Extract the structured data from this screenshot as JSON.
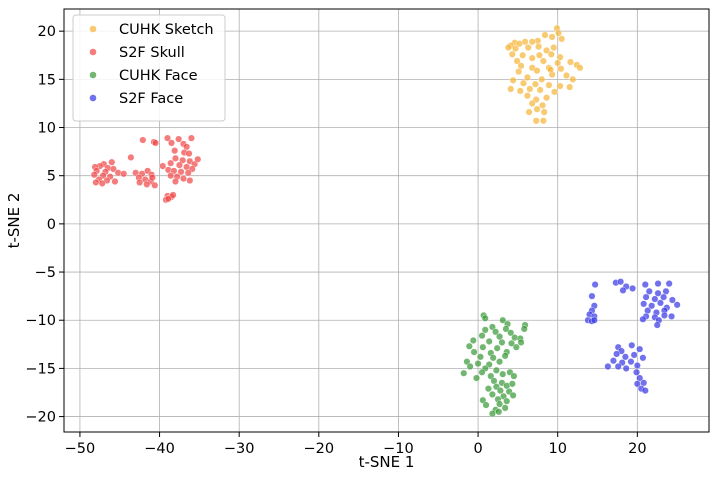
{
  "chart_data": {
    "type": "scatter",
    "title": "",
    "xlabel": "t-SNE 1",
    "ylabel": "t-SNE 2",
    "xlim": [
      -52,
      29
    ],
    "ylim": [
      -21.6,
      22.3
    ],
    "xticks": [
      -50,
      -40,
      -30,
      -20,
      -10,
      0,
      10,
      20
    ],
    "yticks": [
      -20,
      -15,
      -10,
      -5,
      0,
      5,
      10,
      15,
      20
    ],
    "xtick_labels": [
      "−50",
      "−40",
      "−30",
      "−20",
      "−10",
      "0",
      "10",
      "20"
    ],
    "ytick_labels": [
      "−20",
      "−15",
      "−10",
      "−5",
      "0",
      "5",
      "10",
      "15",
      "20"
    ],
    "grid": true,
    "legend_position": "top-left",
    "series": [
      {
        "name": "CUHK Sketch",
        "color": "#f5b53a",
        "points": [
          [
            9.9,
            20.3
          ],
          [
            10.1,
            19.8
          ],
          [
            9.3,
            19.4
          ],
          [
            8.4,
            19.6
          ],
          [
            10.5,
            19.2
          ],
          [
            7.5,
            19.0
          ],
          [
            6.8,
            18.9
          ],
          [
            5.9,
            18.9
          ],
          [
            4.6,
            18.8
          ],
          [
            4.1,
            18.5
          ],
          [
            3.8,
            18.3
          ],
          [
            4.7,
            18.2
          ],
          [
            6.3,
            18.3
          ],
          [
            7.6,
            18.4
          ],
          [
            9.5,
            18.3
          ],
          [
            8.6,
            18.0
          ],
          [
            4.3,
            17.6
          ],
          [
            5.6,
            17.5
          ],
          [
            7.7,
            17.5
          ],
          [
            9.2,
            17.6
          ],
          [
            10.3,
            17.3
          ],
          [
            6.8,
            17.2
          ],
          [
            4.9,
            16.9
          ],
          [
            8.2,
            16.9
          ],
          [
            10.0,
            16.7
          ],
          [
            11.6,
            16.8
          ],
          [
            12.4,
            16.5
          ],
          [
            12.8,
            16.2
          ],
          [
            5.4,
            16.4
          ],
          [
            6.8,
            16.2
          ],
          [
            8.9,
            16.2
          ],
          [
            10.4,
            16.1
          ],
          [
            5.1,
            15.8
          ],
          [
            7.4,
            15.9
          ],
          [
            9.3,
            15.5
          ],
          [
            11.1,
            15.4
          ],
          [
            6.2,
            15.2
          ],
          [
            8.0,
            15.0
          ],
          [
            11.9,
            15.0
          ],
          [
            4.4,
            14.9
          ],
          [
            5.7,
            14.6
          ],
          [
            7.2,
            14.5
          ],
          [
            8.9,
            14.4
          ],
          [
            10.3,
            14.3
          ],
          [
            11.5,
            14.2
          ],
          [
            4.1,
            14.0
          ],
          [
            5.3,
            13.8
          ],
          [
            7.8,
            13.9
          ],
          [
            9.6,
            13.7
          ],
          [
            6.2,
            13.3
          ],
          [
            7.3,
            12.9
          ],
          [
            8.6,
            13.1
          ],
          [
            6.8,
            12.5
          ],
          [
            8.1,
            12.3
          ],
          [
            7.4,
            11.9
          ],
          [
            6.4,
            11.6
          ],
          [
            8.3,
            11.6
          ],
          [
            7.3,
            10.7
          ],
          [
            8.2,
            10.7
          ],
          [
            5.2,
            18.7
          ],
          [
            9.1,
            16.0
          ],
          [
            6.5,
            14.0
          ]
        ]
      },
      {
        "name": "S2F Skull",
        "color": "#f04a4a",
        "points": [
          [
            -39.0,
            8.9
          ],
          [
            -37.6,
            8.8
          ],
          [
            -36.0,
            8.9
          ],
          [
            -38.5,
            8.4
          ],
          [
            -37.0,
            8.3
          ],
          [
            -36.6,
            8.0
          ],
          [
            -42.1,
            8.7
          ],
          [
            -40.7,
            8.5
          ],
          [
            -40.5,
            8.4
          ],
          [
            -38.1,
            7.6
          ],
          [
            -36.9,
            7.4
          ],
          [
            -36.3,
            7.3
          ],
          [
            -43.6,
            6.9
          ],
          [
            -46.0,
            6.4
          ],
          [
            -47.0,
            6.2
          ],
          [
            -47.5,
            6.0
          ],
          [
            -48.1,
            5.9
          ],
          [
            -46.5,
            5.8
          ],
          [
            -45.8,
            5.7
          ],
          [
            -47.9,
            5.5
          ],
          [
            -46.8,
            5.4
          ],
          [
            -45.2,
            5.3
          ],
          [
            -44.5,
            5.2
          ],
          [
            -48.2,
            5.1
          ],
          [
            -47.1,
            5.0
          ],
          [
            -46.2,
            4.9
          ],
          [
            -47.6,
            4.6
          ],
          [
            -46.6,
            4.5
          ],
          [
            -45.6,
            4.4
          ],
          [
            -48.0,
            4.3
          ],
          [
            -47.2,
            4.2
          ],
          [
            -43.0,
            5.3
          ],
          [
            -42.2,
            5.2
          ],
          [
            -41.5,
            5.5
          ],
          [
            -41.0,
            5.1
          ],
          [
            -42.6,
            4.8
          ],
          [
            -41.8,
            4.6
          ],
          [
            -41.1,
            4.4
          ],
          [
            -42.5,
            4.3
          ],
          [
            -41.6,
            4.1
          ],
          [
            -40.6,
            4.0
          ],
          [
            -40.9,
            4.8
          ],
          [
            -38.0,
            6.8
          ],
          [
            -37.1,
            6.6
          ],
          [
            -36.2,
            6.5
          ],
          [
            -35.6,
            6.2
          ],
          [
            -38.6,
            6.3
          ],
          [
            -37.5,
            6.1
          ],
          [
            -36.6,
            5.9
          ],
          [
            -35.9,
            5.7
          ],
          [
            -38.9,
            5.6
          ],
          [
            -38.2,
            5.5
          ],
          [
            -37.3,
            5.4
          ],
          [
            -36.4,
            5.3
          ],
          [
            -38.6,
            5.0
          ],
          [
            -37.8,
            4.9
          ],
          [
            -37.0,
            4.7
          ],
          [
            -36.2,
            4.5
          ],
          [
            -38.0,
            4.4
          ],
          [
            -39.0,
            2.9
          ],
          [
            -38.5,
            2.8
          ],
          [
            -39.2,
            2.5
          ],
          [
            -38.9,
            2.6
          ],
          [
            -38.3,
            3.0
          ],
          [
            -35.2,
            6.7
          ],
          [
            -39.6,
            6.0
          ]
        ]
      },
      {
        "name": "CUHK Face",
        "color": "#3a9a3a",
        "points": [
          [
            0.7,
            -9.5
          ],
          [
            0.9,
            -9.8
          ],
          [
            3.1,
            -10.0
          ],
          [
            3.7,
            -10.4
          ],
          [
            5.9,
            -10.5
          ],
          [
            1.8,
            -10.7
          ],
          [
            3.5,
            -10.9
          ],
          [
            5.8,
            -10.9
          ],
          [
            0.9,
            -11.0
          ],
          [
            2.2,
            -11.2
          ],
          [
            4.1,
            -11.3
          ],
          [
            0.5,
            -11.6
          ],
          [
            2.7,
            -11.7
          ],
          [
            4.6,
            -11.8
          ],
          [
            5.3,
            -11.9
          ],
          [
            -0.6,
            -12.1
          ],
          [
            1.4,
            -12.2
          ],
          [
            3.0,
            -12.3
          ],
          [
            4.2,
            -12.4
          ],
          [
            5.4,
            -12.3
          ],
          [
            -1.1,
            -12.7
          ],
          [
            0.6,
            -12.8
          ],
          [
            2.4,
            -12.9
          ],
          [
            4.8,
            -12.8
          ],
          [
            -0.5,
            -13.3
          ],
          [
            1.6,
            -13.4
          ],
          [
            3.6,
            -13.3
          ],
          [
            0.3,
            -13.8
          ],
          [
            1.9,
            -13.9
          ],
          [
            3.4,
            -13.7
          ],
          [
            -1.4,
            -14.3
          ],
          [
            0.0,
            -14.5
          ],
          [
            1.4,
            -14.6
          ],
          [
            2.7,
            -14.3
          ],
          [
            -1.0,
            -14.8
          ],
          [
            0.9,
            -15.0
          ],
          [
            2.3,
            -15.2
          ],
          [
            -1.8,
            -15.5
          ],
          [
            0.5,
            -15.4
          ],
          [
            1.6,
            -15.8
          ],
          [
            3.1,
            -15.6
          ],
          [
            4.0,
            -15.4
          ],
          [
            2.0,
            -16.3
          ],
          [
            3.0,
            -16.5
          ],
          [
            2.3,
            -16.9
          ],
          [
            3.6,
            -16.8
          ],
          [
            4.3,
            -16.6
          ],
          [
            1.3,
            -17.1
          ],
          [
            2.8,
            -17.3
          ],
          [
            3.9,
            -17.4
          ],
          [
            1.8,
            -17.7
          ],
          [
            3.2,
            -17.9
          ],
          [
            4.4,
            -17.8
          ],
          [
            0.6,
            -18.3
          ],
          [
            2.5,
            -18.2
          ],
          [
            3.6,
            -18.4
          ],
          [
            1.0,
            -18.8
          ],
          [
            2.7,
            -18.7
          ],
          [
            2.2,
            -19.3
          ],
          [
            3.4,
            -19.1
          ],
          [
            1.8,
            -19.7
          ],
          [
            2.6,
            -19.5
          ],
          [
            4.5,
            -15.8
          ],
          [
            -0.2,
            -16.0
          ]
        ]
      },
      {
        "name": "S2F Face",
        "color": "#3a3ae8",
        "points": [
          [
            17.3,
            -6.1
          ],
          [
            17.9,
            -6.0
          ],
          [
            18.6,
            -6.5
          ],
          [
            18.2,
            -6.9
          ],
          [
            19.4,
            -6.7
          ],
          [
            21.0,
            -6.3
          ],
          [
            22.6,
            -6.2
          ],
          [
            24.0,
            -6.2
          ],
          [
            21.5,
            -7.0
          ],
          [
            22.6,
            -7.2
          ],
          [
            23.6,
            -7.0
          ],
          [
            21.1,
            -7.6
          ],
          [
            22.2,
            -7.8
          ],
          [
            23.3,
            -7.6
          ],
          [
            24.4,
            -7.9
          ],
          [
            20.8,
            -8.3
          ],
          [
            21.8,
            -8.5
          ],
          [
            22.9,
            -8.2
          ],
          [
            25.0,
            -8.4
          ],
          [
            23.7,
            -8.7
          ],
          [
            21.3,
            -9.0
          ],
          [
            22.4,
            -9.2
          ],
          [
            23.4,
            -9.0
          ],
          [
            21.1,
            -9.6
          ],
          [
            22.2,
            -9.7
          ],
          [
            23.4,
            -9.5
          ],
          [
            24.3,
            -9.6
          ],
          [
            20.7,
            -9.9
          ],
          [
            22.7,
            -10.0
          ],
          [
            22.5,
            -10.5
          ],
          [
            14.7,
            -6.3
          ],
          [
            14.3,
            -7.5
          ],
          [
            14.6,
            -8.5
          ],
          [
            14.3,
            -9.0
          ],
          [
            14.0,
            -9.4
          ],
          [
            14.6,
            -9.6
          ],
          [
            13.8,
            -10.0
          ],
          [
            14.3,
            -10.1
          ],
          [
            14.6,
            -10.0
          ],
          [
            17.6,
            -12.8
          ],
          [
            18.0,
            -13.2
          ],
          [
            19.3,
            -12.6
          ],
          [
            20.3,
            -13.0
          ],
          [
            17.4,
            -13.5
          ],
          [
            18.5,
            -13.8
          ],
          [
            19.6,
            -13.6
          ],
          [
            20.7,
            -13.9
          ],
          [
            17.0,
            -14.2
          ],
          [
            18.1,
            -14.4
          ],
          [
            19.2,
            -14.3
          ],
          [
            20.0,
            -14.7
          ],
          [
            16.3,
            -14.8
          ],
          [
            17.6,
            -14.8
          ],
          [
            18.6,
            -15.0
          ],
          [
            19.9,
            -15.4
          ],
          [
            20.3,
            -16.0
          ],
          [
            20.0,
            -16.6
          ],
          [
            20.8,
            -16.5
          ],
          [
            20.5,
            -17.1
          ],
          [
            21.0,
            -17.3
          ]
        ]
      }
    ]
  }
}
